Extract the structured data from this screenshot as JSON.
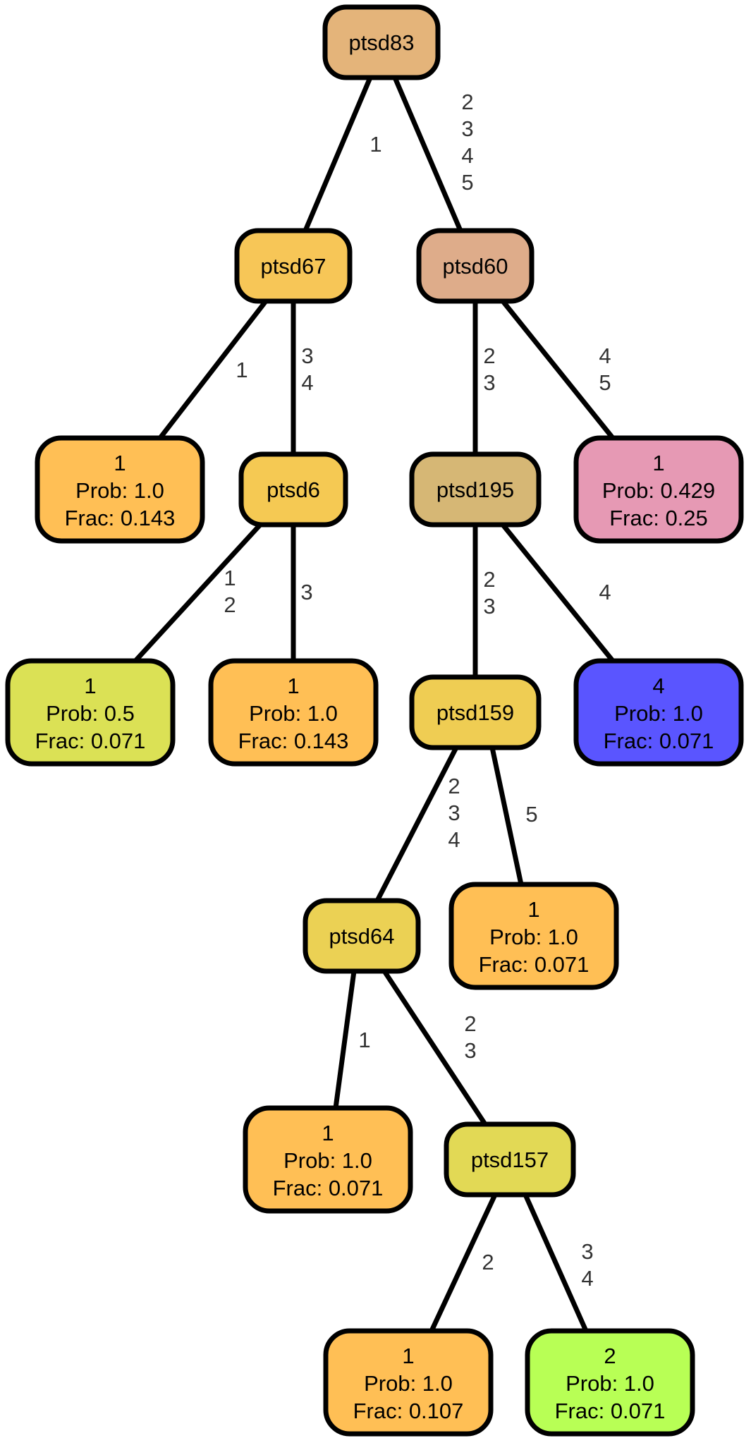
{
  "nodes": {
    "n_ptsd83": {
      "kind": "split",
      "label": "ptsd83",
      "fill": "#e4b47a"
    },
    "n_ptsd67": {
      "kind": "split",
      "label": "ptsd67",
      "fill": "#f7c657"
    },
    "n_ptsd60": {
      "kind": "split",
      "label": "ptsd60",
      "fill": "#deac8a"
    },
    "n_leaf_a": {
      "kind": "leaf",
      "cls": "1",
      "prob": "Prob: 1.0",
      "frac": "Frac: 0.143",
      "fill": "#ffbf55"
    },
    "n_ptsd6": {
      "kind": "split",
      "label": "ptsd6",
      "fill": "#f5c953"
    },
    "n_ptsd195": {
      "kind": "split",
      "label": "ptsd195",
      "fill": "#d6b775"
    },
    "n_leaf_b": {
      "kind": "leaf",
      "cls": "1",
      "prob": "Prob: 0.429",
      "frac": "Frac: 0.25",
      "fill": "#e699b4"
    },
    "n_leaf_c": {
      "kind": "leaf",
      "cls": "1",
      "prob": "Prob: 0.5",
      "frac": "Frac: 0.071",
      "fill": "#dbe155"
    },
    "n_leaf_d": {
      "kind": "leaf",
      "cls": "1",
      "prob": "Prob: 1.0",
      "frac": "Frac: 0.143",
      "fill": "#ffbf55"
    },
    "n_ptsd159": {
      "kind": "split",
      "label": "ptsd159",
      "fill": "#efcd53"
    },
    "n_leaf_e": {
      "kind": "leaf",
      "cls": "4",
      "prob": "Prob: 1.0",
      "frac": "Frac: 0.071",
      "fill": "#5a55ff"
    },
    "n_ptsd64": {
      "kind": "split",
      "label": "ptsd64",
      "fill": "#ebd154"
    },
    "n_leaf_f": {
      "kind": "leaf",
      "cls": "1",
      "prob": "Prob: 1.0",
      "frac": "Frac: 0.071",
      "fill": "#ffbf55"
    },
    "n_leaf_g": {
      "kind": "leaf",
      "cls": "1",
      "prob": "Prob: 1.0",
      "frac": "Frac: 0.071",
      "fill": "#ffbf55"
    },
    "n_ptsd157": {
      "kind": "split",
      "label": "ptsd157",
      "fill": "#e2d955"
    },
    "n_leaf_h": {
      "kind": "leaf",
      "cls": "1",
      "prob": "Prob: 1.0",
      "frac": "Frac: 0.107",
      "fill": "#ffbf55"
    },
    "n_leaf_i": {
      "kind": "leaf",
      "cls": "2",
      "prob": "Prob: 1.0",
      "frac": "Frac: 0.071",
      "fill": "#b8ff55"
    }
  },
  "edges": [
    {
      "from": "n_ptsd83",
      "to": "n_ptsd67",
      "label": [
        "1"
      ]
    },
    {
      "from": "n_ptsd83",
      "to": "n_ptsd60",
      "label": [
        "2",
        "3",
        "4",
        "5"
      ]
    },
    {
      "from": "n_ptsd67",
      "to": "n_leaf_a",
      "label": [
        "1"
      ]
    },
    {
      "from": "n_ptsd67",
      "to": "n_ptsd6",
      "label": [
        "3",
        "4"
      ]
    },
    {
      "from": "n_ptsd6",
      "to": "n_leaf_c",
      "label": [
        "1",
        "2"
      ]
    },
    {
      "from": "n_ptsd6",
      "to": "n_leaf_d",
      "label": [
        "3"
      ]
    },
    {
      "from": "n_ptsd60",
      "to": "n_ptsd195",
      "label": [
        "2",
        "3"
      ]
    },
    {
      "from": "n_ptsd60",
      "to": "n_leaf_b",
      "label": [
        "4",
        "5"
      ]
    },
    {
      "from": "n_ptsd195",
      "to": "n_ptsd159",
      "label": [
        "2",
        "3"
      ]
    },
    {
      "from": "n_ptsd195",
      "to": "n_leaf_e",
      "label": [
        "4"
      ]
    },
    {
      "from": "n_ptsd159",
      "to": "n_ptsd64",
      "label": [
        "2",
        "3",
        "4"
      ]
    },
    {
      "from": "n_ptsd159",
      "to": "n_leaf_g",
      "label": [
        "5"
      ]
    },
    {
      "from": "n_ptsd64",
      "to": "n_leaf_f",
      "label": [
        "1"
      ]
    },
    {
      "from": "n_ptsd64",
      "to": "n_ptsd157",
      "label": [
        "2",
        "3"
      ]
    },
    {
      "from": "n_ptsd157",
      "to": "n_leaf_h",
      "label": [
        "2"
      ]
    },
    {
      "from": "n_ptsd157",
      "to": "n_leaf_i",
      "label": [
        "3",
        "4"
      ]
    }
  ]
}
